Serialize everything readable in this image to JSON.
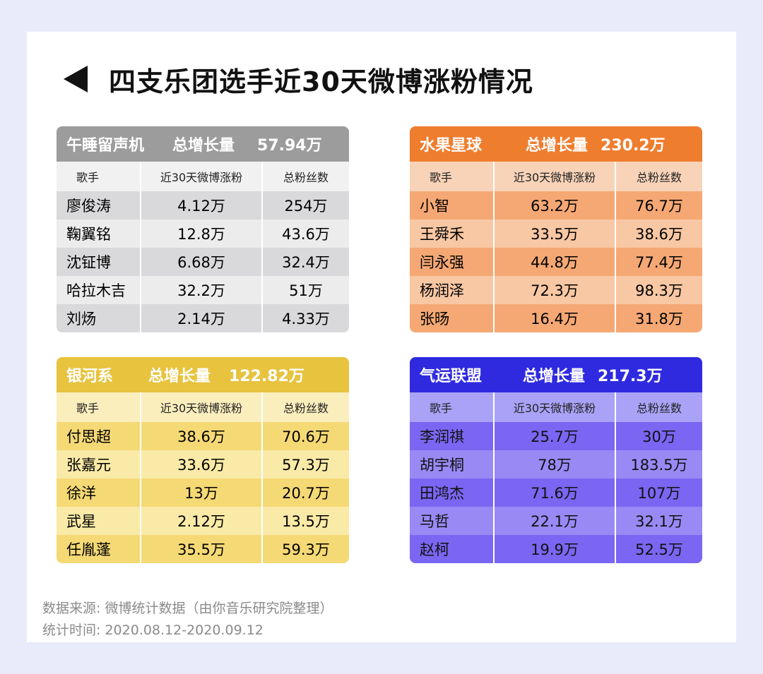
{
  "title": "四支乐团选手近30天微博涨粉情况",
  "columns": [
    "歌手",
    "近30天微博涨粉",
    "总粉丝数"
  ],
  "total_label": "总增长量",
  "bands": [
    {
      "name": "午睡留声机",
      "total": "57.94万",
      "color": "#9c9c9c",
      "rows": [
        [
          "廖俊涛",
          "4.12万",
          "254万"
        ],
        [
          "鞠翼铭",
          "12.8万",
          "43.6万"
        ],
        [
          "沈钲博",
          "6.68万",
          "32.4万"
        ],
        [
          "哈拉木吉",
          "32.2万",
          "51万"
        ],
        [
          "刘炀",
          "2.14万",
          "4.33万"
        ]
      ]
    },
    {
      "name": "水果星球",
      "total": "230.2万",
      "color": "#ef7d2e",
      "rows": [
        [
          "小智",
          "63.2万",
          "76.7万"
        ],
        [
          "王舜禾",
          "33.5万",
          "38.6万"
        ],
        [
          "闫永强",
          "44.8万",
          "77.4万"
        ],
        [
          "杨润泽",
          "72.3万",
          "98.3万"
        ],
        [
          "张旸",
          "16.4万",
          "31.8万"
        ]
      ]
    },
    {
      "name": "银河系",
      "total": "122.82万",
      "color": "#e7c33e",
      "rows": [
        [
          "付思超",
          "38.6万",
          "70.6万"
        ],
        [
          "张嘉元",
          "33.6万",
          "57.3万"
        ],
        [
          "徐洋",
          "13万",
          "20.7万"
        ],
        [
          "武星",
          "2.12万",
          "13.5万"
        ],
        [
          "任胤蓬",
          "35.5万",
          "59.3万"
        ]
      ]
    },
    {
      "name": "气运联盟",
      "total": "217.3万",
      "color": "#2f2ae0",
      "rows": [
        [
          "李润祺",
          "25.7万",
          "30万"
        ],
        [
          "胡宇桐",
          "78万",
          "183.5万"
        ],
        [
          "田鸿杰",
          "71.6万",
          "107万"
        ],
        [
          "马哲",
          "22.1万",
          "32.1万"
        ],
        [
          "赵柯",
          "19.9万",
          "52.5万"
        ]
      ]
    }
  ],
  "footer": {
    "source": "数据来源: 微博统计数据（由你音乐研究院整理）",
    "period": "统计时间: 2020.08.12-2020.09.12"
  }
}
